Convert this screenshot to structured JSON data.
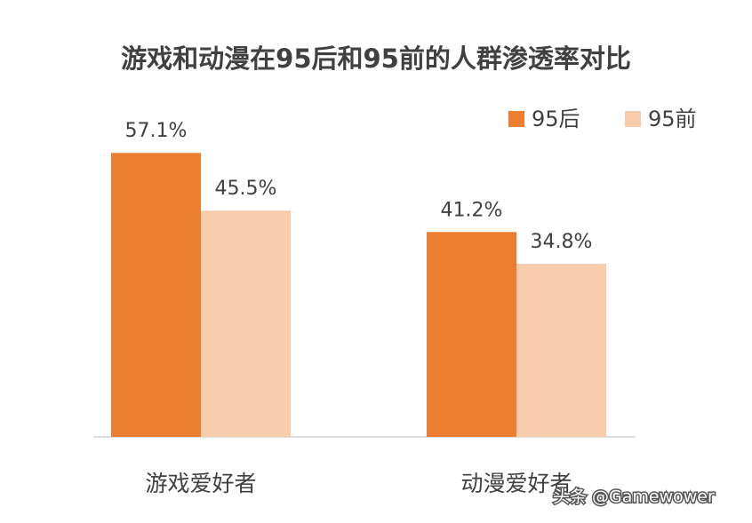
{
  "chart_data": {
    "type": "bar",
    "title": "游戏和动漫在95后和95前的人群渗透率对比",
    "categories": [
      "游戏爱好者",
      "动漫爱好者"
    ],
    "series": [
      {
        "name": "95后",
        "color": "#ed7d31",
        "values": [
          57.1,
          41.2
        ],
        "value_labels": [
          "57.1%",
          "41.2%"
        ]
      },
      {
        "name": "95前",
        "color": "#f8cbad",
        "values": [
          45.5,
          34.8
        ],
        "value_labels": [
          "45.5%",
          "34.8%"
        ]
      }
    ],
    "ylim": [
      0,
      60
    ],
    "legend": "top-right",
    "watermark": "头条 @Gamewower"
  }
}
